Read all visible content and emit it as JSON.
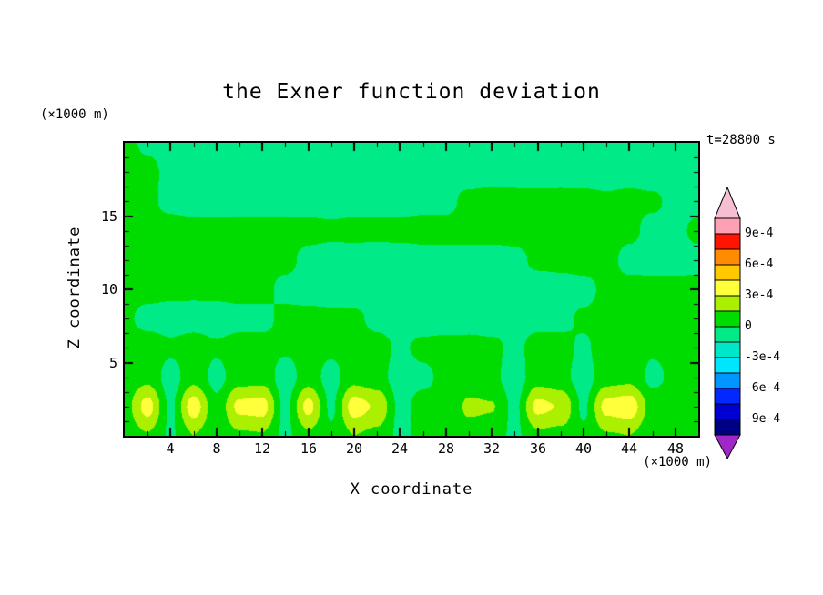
{
  "title": "the Exner function deviation",
  "time_label": "t=28800 s",
  "y_unit_label": "(×1000 m)",
  "x_unit_label": "(×1000 m)",
  "xlabel": "X coordinate",
  "ylabel": "Z coordinate",
  "chart_data": {
    "type": "heatmap",
    "title": "the Exner function deviation",
    "xlabel": "X coordinate",
    "ylabel": "Z coordinate",
    "x_units": "x1000 m",
    "z_units": "x1000 m",
    "time": "t=28800 s",
    "xlim": [
      0,
      50
    ],
    "ylim": [
      0,
      20
    ],
    "x_ticks": [
      4,
      8,
      12,
      16,
      20,
      24,
      28,
      32,
      36,
      40,
      44,
      48
    ],
    "y_ticks": [
      5,
      10,
      15
    ],
    "x_minor_step": 2,
    "y_minor_step": 1,
    "contour_interval_e4": 1.5,
    "value_scale": 0.0001,
    "grid": {
      "x": [
        0,
        2,
        4,
        6,
        8,
        10,
        12,
        14,
        16,
        18,
        20,
        22,
        24,
        26,
        28,
        30,
        32,
        34,
        36,
        38,
        40,
        42,
        44,
        46,
        48,
        50
      ],
      "z": [
        0,
        2,
        4,
        6,
        8,
        10,
        12,
        14,
        16,
        18,
        20
      ],
      "values_e4": [
        [
          0.6,
          1.4,
          -0.2,
          1.5,
          0.4,
          1.3,
          1.4,
          -0.3,
          1.2,
          0.3,
          1.5,
          1.1,
          -0.3,
          0.4,
          0.2,
          0.8,
          0.7,
          -0.3,
          1.2,
          1.0,
          0.3,
          1.4,
          1.5,
          0.5,
          0.4,
          0.3
        ],
        [
          0.9,
          3.6,
          -0.3,
          3.8,
          0.4,
          3.4,
          3.6,
          -0.4,
          3.5,
          -0.3,
          3.7,
          2.8,
          -0.4,
          0.5,
          0.2,
          1.8,
          1.6,
          -0.4,
          3.4,
          2.9,
          -0.3,
          3.5,
          3.9,
          0.9,
          0.5,
          0.3
        ],
        [
          0.6,
          1.1,
          -0.7,
          1.0,
          -0.5,
          0.9,
          1.0,
          -0.8,
          0.8,
          -0.6,
          1.0,
          0.6,
          -0.7,
          -0.3,
          0.4,
          0.5,
          0.4,
          -0.8,
          0.9,
          0.5,
          -0.7,
          0.9,
          1.1,
          -0.4,
          0.4,
          0.3
        ],
        [
          0.5,
          0.8,
          0.3,
          0.7,
          0.2,
          0.6,
          0.5,
          0.2,
          0.6,
          0.3,
          0.7,
          0.5,
          -0.2,
          0.3,
          0.5,
          0.4,
          0.3,
          -0.3,
          0.5,
          0.4,
          -0.2,
          0.6,
          0.7,
          0.2,
          0.4,
          0.3
        ],
        [
          0.3,
          -0.5,
          -0.7,
          -0.6,
          -0.7,
          -0.5,
          -0.4,
          0.4,
          0.5,
          0.4,
          0.3,
          -0.4,
          -0.6,
          -0.6,
          -0.7,
          -0.5,
          -0.6,
          -0.5,
          -0.4,
          -0.3,
          0.2,
          0.4,
          0.5,
          0.4,
          0.4,
          0.3
        ],
        [
          0.4,
          0.5,
          0.4,
          0.3,
          0.4,
          0.5,
          0.4,
          -0.4,
          -0.7,
          -0.8,
          -0.8,
          -0.7,
          -0.8,
          -0.8,
          -0.7,
          -0.8,
          -0.7,
          -0.8,
          -0.7,
          -0.6,
          -0.4,
          0.3,
          0.4,
          0.5,
          0.4,
          0.4
        ],
        [
          0.5,
          0.6,
          0.5,
          0.4,
          0.5,
          0.6,
          0.5,
          0.4,
          -0.4,
          -0.6,
          -0.7,
          -0.6,
          -0.7,
          -0.6,
          -0.5,
          -0.6,
          -0.5,
          -0.4,
          0.3,
          0.4,
          0.5,
          0.4,
          -0.4,
          -0.6,
          -0.5,
          -0.4
        ],
        [
          0.6,
          0.7,
          0.6,
          0.5,
          0.4,
          0.5,
          0.6,
          0.5,
          0.4,
          0.3,
          0.4,
          0.3,
          0.4,
          0.5,
          0.4,
          0.5,
          0.4,
          0.5,
          0.6,
          0.5,
          0.6,
          0.5,
          0.3,
          -0.4,
          -0.3,
          0.3
        ],
        [
          0.4,
          0.3,
          -0.4,
          -0.6,
          -0.5,
          -0.6,
          -0.7,
          -0.6,
          -0.5,
          -0.6,
          -0.5,
          -0.4,
          -0.5,
          -0.4,
          -0.3,
          0.3,
          0.4,
          0.4,
          0.3,
          0.4,
          0.3,
          0.2,
          0.3,
          0.2,
          -0.3,
          -0.4
        ],
        [
          0.4,
          0.3,
          -0.3,
          -0.5,
          -0.6,
          -0.5,
          -0.6,
          -0.5,
          -0.6,
          -0.5,
          -0.6,
          -0.5,
          -0.4,
          -0.5,
          -0.4,
          -0.5,
          -0.4,
          -0.5,
          -0.4,
          -0.5,
          -0.4,
          -0.5,
          -0.4,
          -0.5,
          -0.5,
          -0.4
        ],
        [
          0.3,
          -0.2,
          -0.4,
          -0.5,
          -0.5,
          -0.6,
          -0.5,
          -0.6,
          -0.5,
          -0.6,
          -0.5,
          -0.6,
          -0.5,
          -0.4,
          -0.5,
          -0.4,
          -0.5,
          -0.4,
          -0.5,
          -0.4,
          -0.5,
          -0.4,
          -0.5,
          -0.4,
          -0.5,
          -0.4
        ]
      ]
    },
    "colorbar": {
      "levels_e4": [
        -10.5,
        -9,
        -7.5,
        -6,
        -4.5,
        -3,
        -1.5,
        0,
        1.5,
        3,
        4.5,
        6,
        7.5,
        9,
        10.5
      ],
      "band_colors": [
        "#000082",
        "#0000D2",
        "#0028FF",
        "#0096FF",
        "#00E6FF",
        "#00E6C8",
        "#00EB87",
        "#00DC00",
        "#AAF000",
        "#FFFF3C",
        "#FFC800",
        "#FF8C00",
        "#FF1400",
        "#FFA0B4"
      ],
      "under_color": "#A028C8",
      "over_color": "#F5BED2",
      "tick_values_e4": [
        9,
        6,
        3,
        0,
        -3,
        -6,
        -9
      ],
      "tick_labels": [
        "9e-4",
        "6e-4",
        "3e-4",
        "0",
        "-3e-4",
        "-6e-4",
        "-9e-4"
      ]
    }
  }
}
